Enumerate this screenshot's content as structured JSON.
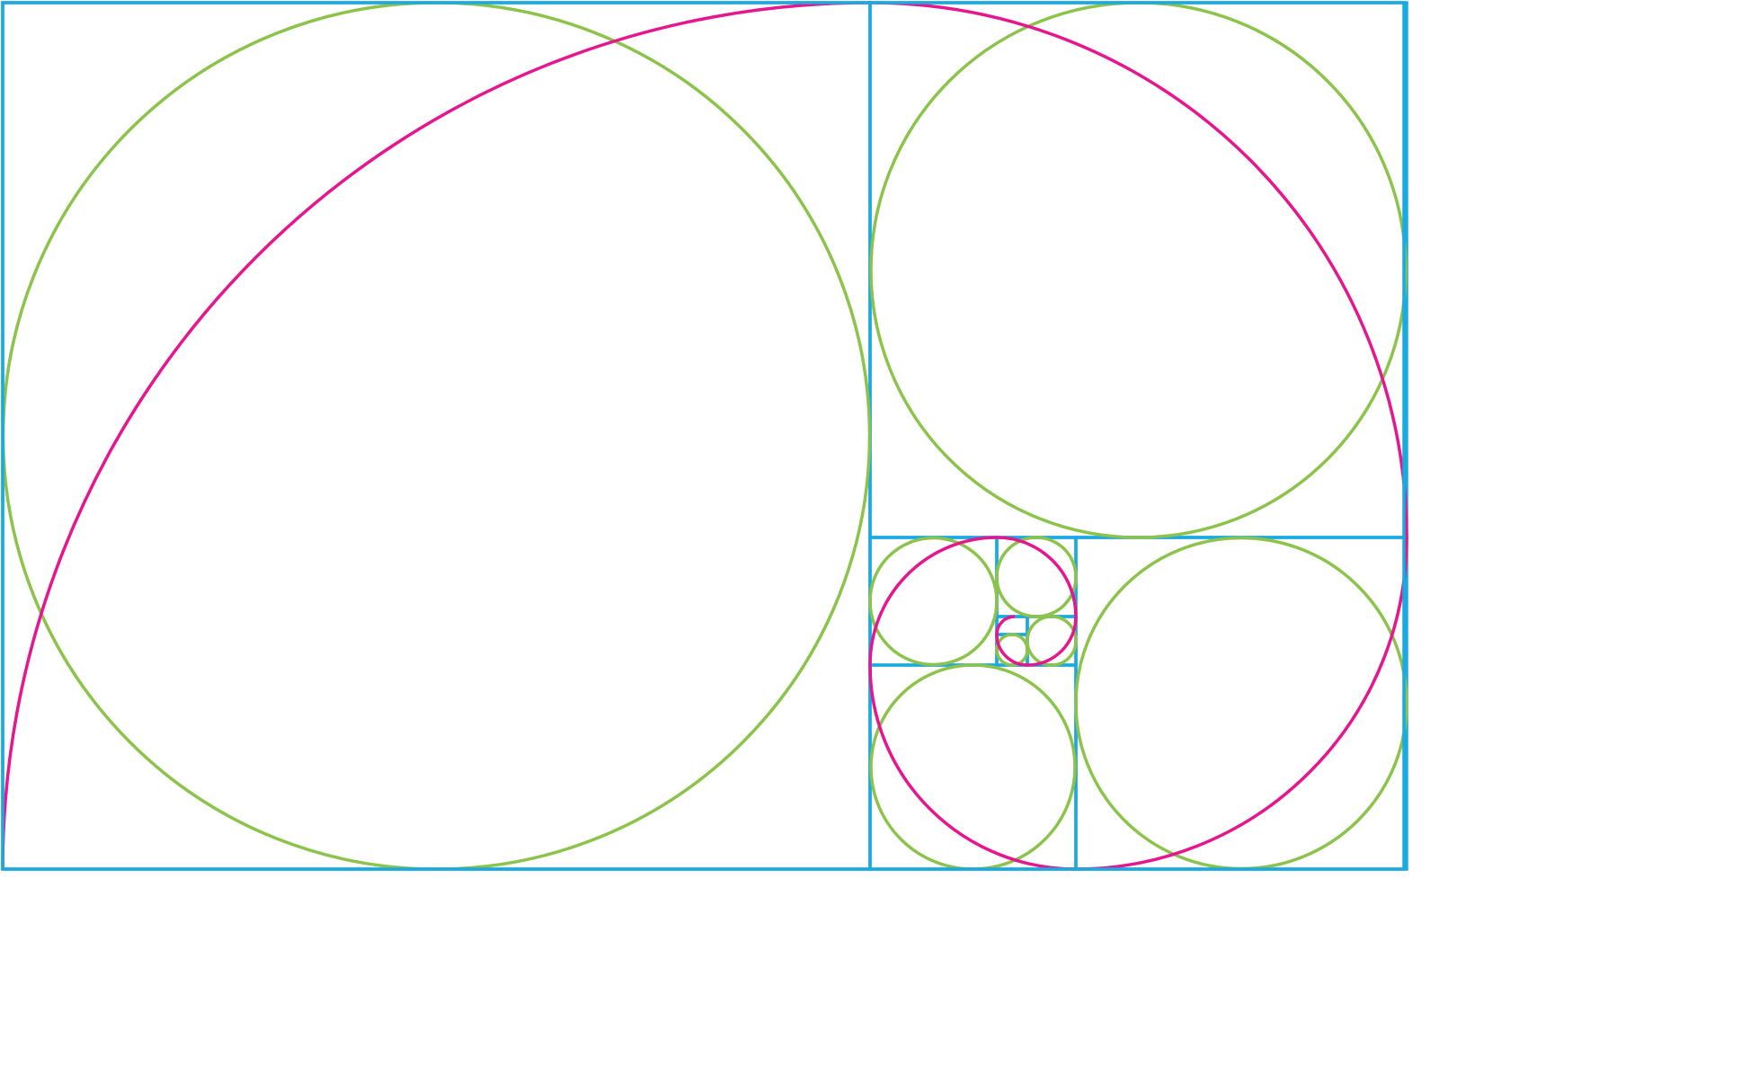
{
  "diagram": {
    "type": "golden-rectangle-spiral",
    "element_kinds": [
      "golden-rectangle",
      "fibonacci-squares",
      "inscribed-circles",
      "golden-spiral"
    ],
    "colors": {
      "background": "#ffffff",
      "square_lines": "#1aa9e1",
      "circles": "#8cc34b",
      "spiral": "#e6168f"
    }
  }
}
